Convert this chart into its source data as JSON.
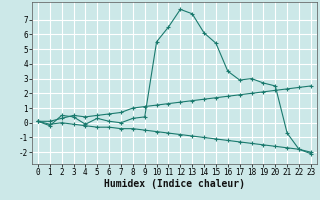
{
  "xlabel": "Humidex (Indice chaleur)",
  "bg_color": "#cce8e8",
  "grid_color": "#ffffff",
  "line_color": "#1a7a6e",
  "x_ticks": [
    0,
    1,
    2,
    3,
    4,
    5,
    6,
    7,
    8,
    9,
    10,
    11,
    12,
    13,
    14,
    15,
    16,
    17,
    18,
    19,
    20,
    21,
    22,
    23
  ],
  "y_ticks": [
    -2,
    -1,
    0,
    1,
    2,
    3,
    4,
    5,
    6,
    7
  ],
  "ylim": [
    -2.8,
    8.2
  ],
  "xlim": [
    -0.5,
    23.5
  ],
  "series1_x": [
    0,
    1,
    2,
    3,
    4,
    5,
    6,
    7,
    8,
    9,
    10,
    11,
    12,
    13,
    14,
    15,
    16,
    17,
    18,
    19,
    20,
    21,
    22,
    23
  ],
  "series1_y": [
    0.1,
    -0.2,
    0.5,
    0.4,
    -0.1,
    0.3,
    0.1,
    0.0,
    0.3,
    0.4,
    5.5,
    6.5,
    7.7,
    7.4,
    6.1,
    5.4,
    3.5,
    2.9,
    3.0,
    2.7,
    2.5,
    -0.7,
    -1.8,
    -2.1
  ],
  "series2_x": [
    0,
    1,
    2,
    3,
    4,
    5,
    6,
    7,
    8,
    9,
    10,
    11,
    12,
    13,
    14,
    15,
    16,
    17,
    18,
    19,
    20,
    21,
    22,
    23
  ],
  "series2_y": [
    0.1,
    0.1,
    0.3,
    0.5,
    0.4,
    0.5,
    0.6,
    0.7,
    1.0,
    1.1,
    1.2,
    1.3,
    1.4,
    1.5,
    1.6,
    1.7,
    1.8,
    1.9,
    2.0,
    2.1,
    2.2,
    2.3,
    2.4,
    2.5
  ],
  "series3_x": [
    0,
    1,
    2,
    3,
    4,
    5,
    6,
    7,
    8,
    9,
    10,
    11,
    12,
    13,
    14,
    15,
    16,
    17,
    18,
    19,
    20,
    21,
    22,
    23
  ],
  "series3_y": [
    0.1,
    -0.1,
    0.0,
    -0.1,
    -0.2,
    -0.3,
    -0.3,
    -0.4,
    -0.4,
    -0.5,
    -0.6,
    -0.7,
    -0.8,
    -0.9,
    -1.0,
    -1.1,
    -1.2,
    -1.3,
    -1.4,
    -1.5,
    -1.6,
    -1.7,
    -1.8,
    -2.0
  ],
  "tick_fontsize": 5.5,
  "xlabel_fontsize": 7
}
